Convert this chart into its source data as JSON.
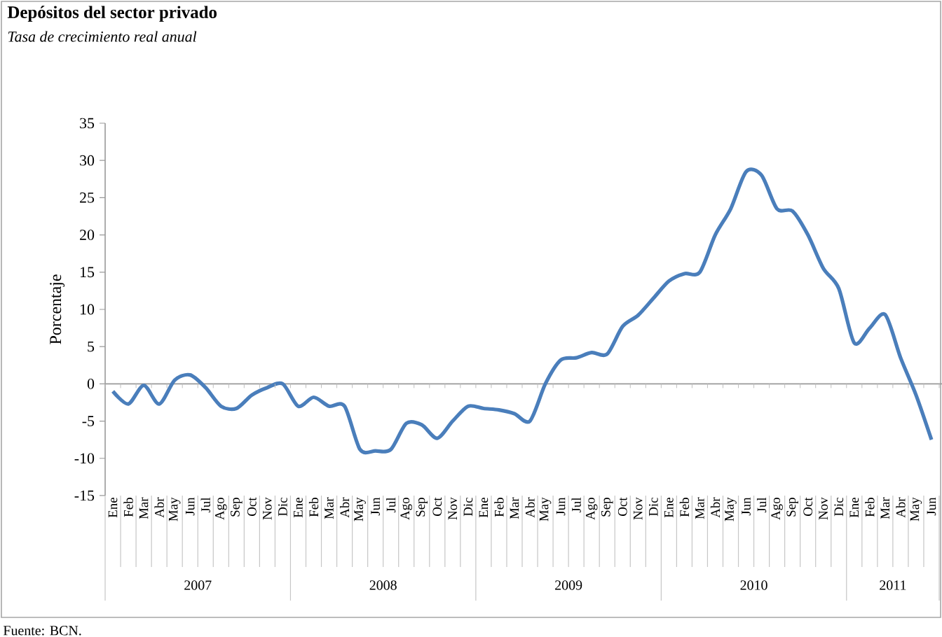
{
  "chart_data": {
    "type": "line",
    "title": "Depósitos del sector privado",
    "subtitle": "Tasa de crecimiento real anual",
    "ylabel": "Porcentaje",
    "categories": [
      "Ene",
      "Feb",
      "Mar",
      "Abr",
      "May",
      "Jun",
      "Jul",
      "Ago",
      "Sep",
      "Oct",
      "Nov",
      "Dic",
      "Ene",
      "Feb",
      "Mar",
      "Abr",
      "May",
      "Jun",
      "Jul",
      "Ago",
      "Sep",
      "Oct",
      "Nov",
      "Dic",
      "Ene",
      "Feb",
      "Mar",
      "Abr",
      "May",
      "Jun",
      "Jul",
      "Ago",
      "Sep",
      "Oct",
      "Nov",
      "Dic",
      "Ene",
      "Feb",
      "Mar",
      "Abr",
      "May",
      "Jun",
      "Jul",
      "Ago",
      "Sep",
      "Oct",
      "Nov",
      "Dic",
      "Ene",
      "Feb",
      "Mar",
      "Abr",
      "May",
      "Jun"
    ],
    "series": [
      {
        "color": "#4a7ebb",
        "values": [
          -1,
          -2.7,
          -0.2,
          -2.7,
          0.5,
          1.2,
          -0.5,
          -3,
          -3.3,
          -1.5,
          -0.5,
          0,
          -3,
          -1.8,
          -3,
          -3,
          -8.8,
          -9,
          -8.8,
          -5.3,
          -5.5,
          -7.3,
          -5,
          -3,
          -3.3,
          -3.5,
          -4,
          -5,
          0,
          3.2,
          3.5,
          4.2,
          4,
          7.7,
          9.2,
          11.5,
          13.8,
          14.8,
          15,
          20,
          23.5,
          28.5,
          28,
          23.5,
          23.2,
          20,
          15.5,
          12.8,
          5.5,
          7.5,
          9.3,
          3.5,
          -1.5,
          -7.5
        ]
      }
    ],
    "ylim": [
      -15,
      35
    ],
    "yticks": [
      -15,
      -10,
      -5,
      0,
      5,
      10,
      15,
      20,
      25,
      30,
      35
    ],
    "marker": "none",
    "line_style": "solid",
    "annotations": [
      "2007",
      "2008",
      "2009",
      "2010",
      "2011",
      "Fuente: BCN."
    ]
  }
}
